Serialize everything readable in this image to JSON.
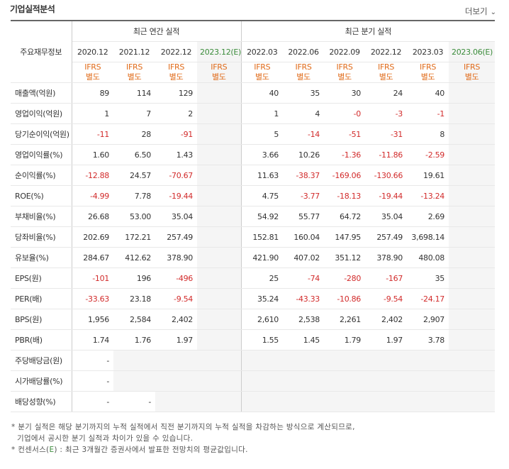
{
  "header": {
    "title": "기업실적분석",
    "more_label": "더보기",
    "more_icon": "chevron-down-icon"
  },
  "table": {
    "metric_header": "주요재무정보",
    "groups": [
      {
        "label": "최근 연간 실적"
      },
      {
        "label": "최근 분기 실적"
      }
    ],
    "annual_periods": [
      "2020.12",
      "2021.12",
      "2022.12",
      "2023.12(E)"
    ],
    "quarter_periods": [
      "2022.03",
      "2022.06",
      "2022.09",
      "2022.12",
      "2023.03",
      "2023.06(E)"
    ],
    "ifrs_line1": "IFRS",
    "ifrs_line2": "별도",
    "rows": [
      {
        "label": "매출액(억원)",
        "annual": [
          "89",
          "114",
          "129",
          ""
        ],
        "quarter": [
          "40",
          "35",
          "30",
          "24",
          "40",
          ""
        ]
      },
      {
        "label": "영업이익(억원)",
        "annual": [
          "1",
          "7",
          "2",
          ""
        ],
        "quarter": [
          "1",
          "4",
          "-0",
          "-3",
          "-1",
          ""
        ]
      },
      {
        "label": "당기순이익(억원)",
        "annual": [
          "-11",
          "28",
          "-91",
          ""
        ],
        "quarter": [
          "5",
          "-14",
          "-51",
          "-31",
          "8",
          ""
        ]
      },
      {
        "label": "영업이익률(%)",
        "annual": [
          "1.60",
          "6.50",
          "1.43",
          ""
        ],
        "quarter": [
          "3.66",
          "10.26",
          "-1.36",
          "-11.86",
          "-2.59",
          ""
        ]
      },
      {
        "label": "순이익률(%)",
        "annual": [
          "-12.88",
          "24.57",
          "-70.67",
          ""
        ],
        "quarter": [
          "11.63",
          "-38.37",
          "-169.06",
          "-130.66",
          "19.61",
          ""
        ]
      },
      {
        "label": "ROE(%)",
        "annual": [
          "-4.99",
          "7.78",
          "-19.44",
          ""
        ],
        "quarter": [
          "4.75",
          "-3.77",
          "-18.13",
          "-19.44",
          "-13.24",
          ""
        ]
      },
      {
        "label": "부채비율(%)",
        "annual": [
          "26.68",
          "53.00",
          "35.04",
          ""
        ],
        "quarter": [
          "54.92",
          "55.77",
          "64.72",
          "35.04",
          "2.69",
          ""
        ]
      },
      {
        "label": "당좌비율(%)",
        "annual": [
          "202.69",
          "172.21",
          "257.49",
          ""
        ],
        "quarter": [
          "152.81",
          "160.04",
          "147.95",
          "257.49",
          "3,698.14",
          ""
        ]
      },
      {
        "label": "유보율(%)",
        "annual": [
          "284.67",
          "412.62",
          "378.90",
          ""
        ],
        "quarter": [
          "421.90",
          "407.02",
          "351.12",
          "378.90",
          "480.08",
          ""
        ]
      },
      {
        "label": "EPS(원)",
        "annual": [
          "-101",
          "196",
          "-496",
          ""
        ],
        "quarter": [
          "25",
          "-74",
          "-280",
          "-167",
          "35",
          ""
        ]
      },
      {
        "label": "PER(배)",
        "annual": [
          "-33.63",
          "23.18",
          "-9.54",
          ""
        ],
        "quarter": [
          "35.24",
          "-43.33",
          "-10.86",
          "-9.54",
          "-24.17",
          ""
        ]
      },
      {
        "label": "BPS(원)",
        "annual": [
          "1,956",
          "2,584",
          "2,402",
          ""
        ],
        "quarter": [
          "2,610",
          "2,538",
          "2,261",
          "2,402",
          "2,907",
          ""
        ]
      },
      {
        "label": "PBR(배)",
        "annual": [
          "1.74",
          "1.76",
          "1.97",
          ""
        ],
        "quarter": [
          "1.55",
          "1.45",
          "1.79",
          "1.97",
          "3.78",
          ""
        ]
      },
      {
        "label": "주당배당금(원)",
        "annual": [
          "-",
          "",
          "",
          ""
        ],
        "quarter": [
          "",
          "",
          "",
          "",
          "",
          ""
        ]
      },
      {
        "label": "시가배당률(%)",
        "annual": [
          "-",
          "",
          "",
          ""
        ],
        "quarter": [
          "",
          "",
          "",
          "",
          "",
          ""
        ]
      },
      {
        "label": "배당성향(%)",
        "annual": [
          "-",
          "-",
          "",
          ""
        ],
        "quarter": [
          "",
          "",
          "",
          "",
          "",
          ""
        ]
      }
    ]
  },
  "notes": {
    "line1": "* 분기 실적은 해당 분기까지의 누적 실적에서 직전 분기까지의 누적 실적을 차감하는 방식으로 계산되므로,",
    "line2": "기업에서 공시한 분기 실적과 차이가 있을 수 있습니다.",
    "line3_prefix": "* 컨센서스(",
    "line3_mark": "E",
    "line3_suffix": ") : 최근 3개월간 증권사에서 발표한 전망치의 평균값입니다."
  },
  "colors": {
    "negative": "#d22b2b",
    "ifrs": "#e06b1a",
    "estimate": "#3b8c3b",
    "estimate_bg": "#f5f5f5"
  }
}
